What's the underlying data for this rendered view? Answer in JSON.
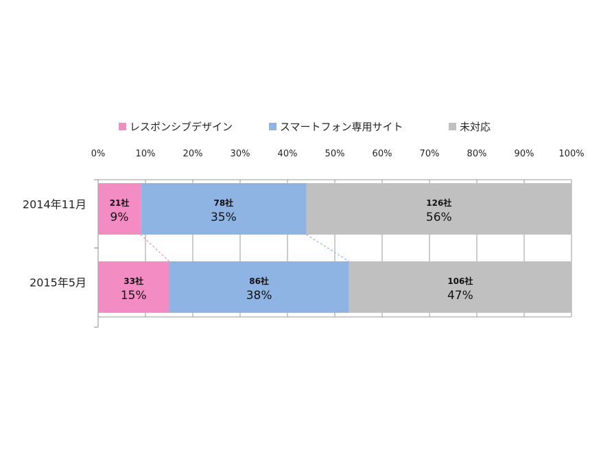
{
  "chart_data": {
    "type": "bar",
    "orientation": "horizontal",
    "stacked": true,
    "title": "",
    "xlabel": "",
    "ylabel": "",
    "xlim": [
      0,
      100
    ],
    "x_ticks": [
      "0%",
      "10%",
      "20%",
      "30%",
      "40%",
      "50%",
      "60%",
      "70%",
      "80%",
      "90%",
      "100%"
    ],
    "grid": true,
    "legend_position": "top",
    "categories": [
      "2014年11月",
      "2015年5月"
    ],
    "series": [
      {
        "name": "レスポンシブデザイン",
        "color": "#f48cc4",
        "values": [
          9,
          15
        ],
        "counts": [
          "21社",
          "33社"
        ],
        "labels": [
          "9%",
          "15%"
        ]
      },
      {
        "name": "スマートフォン専用サイト",
        "color": "#8db4e3",
        "values": [
          35,
          38
        ],
        "counts": [
          "78社",
          "86社"
        ],
        "labels": [
          "35%",
          "38%"
        ]
      },
      {
        "name": "未対応",
        "color": "#c0c0c0",
        "values": [
          56,
          47
        ],
        "counts": [
          "126社",
          "106社"
        ],
        "labels": [
          "56%",
          "47%"
        ]
      }
    ]
  }
}
